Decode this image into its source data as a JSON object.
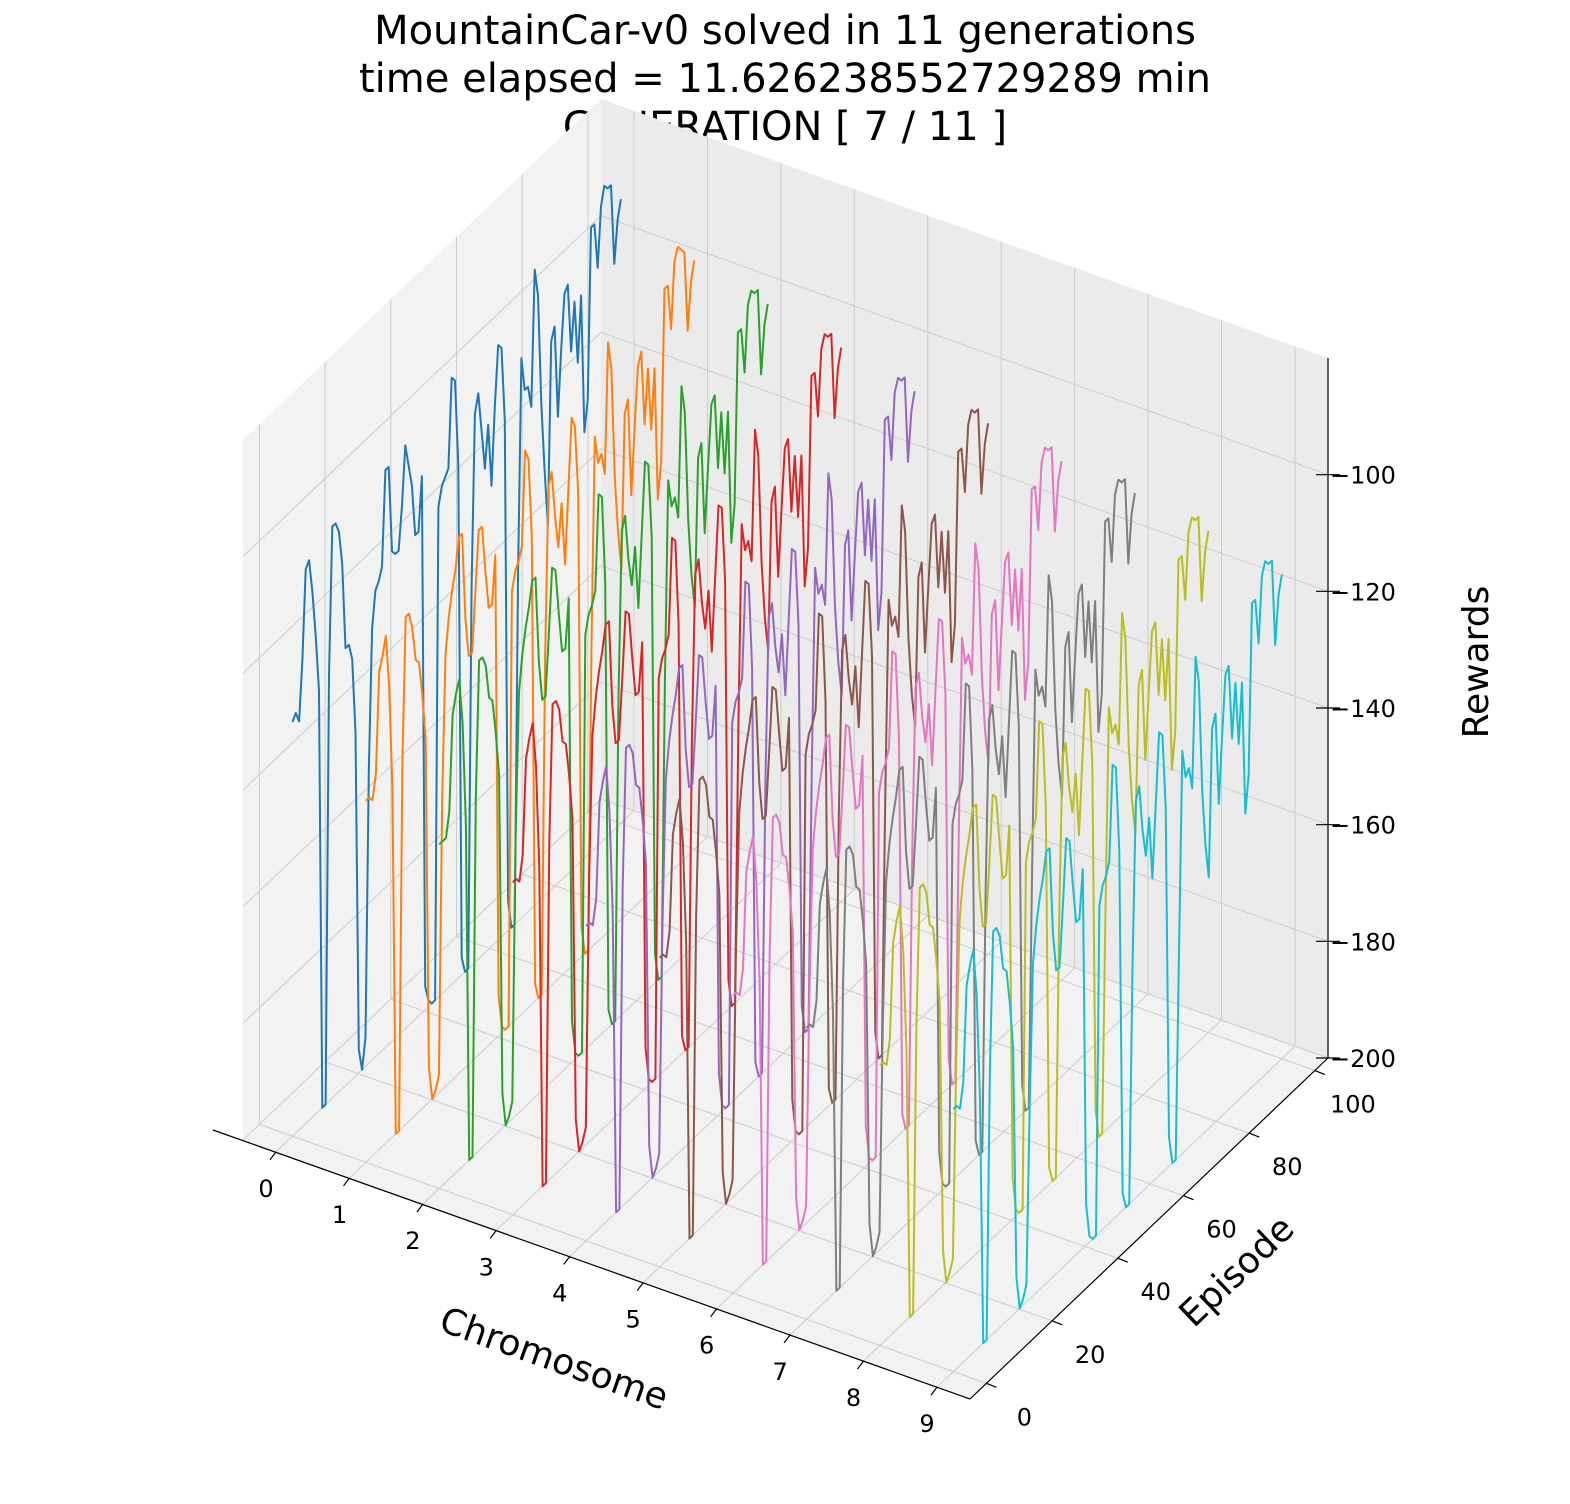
{
  "title": {
    "line1": "MountainCar-v0 solved in 11 generations",
    "line2": "time elapsed = 11.626238552729289 min",
    "line3": "GENERATION [ 7 / 11 ]"
  },
  "chart_data": {
    "type": "line",
    "projection": "3d",
    "title": "MountainCar-v0 solved in 11 generations\ntime elapsed = 11.626238552729289 min\nGENERATION [ 7 / 11 ]",
    "xlabel": "Chromosome",
    "ylabel": "Episode",
    "zlabel": "Rewards",
    "x_ticks": [
      "0",
      "1",
      "2",
      "3",
      "4",
      "5",
      "6",
      "7",
      "8",
      "9"
    ],
    "y_ticks": [
      "0",
      "20",
      "40",
      "60",
      "80",
      "100"
    ],
    "z_ticks": [
      "−200",
      "−180",
      "−160",
      "−140",
      "−120",
      "−100"
    ],
    "xlim": [
      -0.45,
      9.45
    ],
    "ylim": [
      -5,
      104
    ],
    "zlim": [
      -200,
      -80
    ],
    "grid": true,
    "series": [
      {
        "chromosome": 0,
        "color": "#1f77b4",
        "values": [
          -129,
          -128,
          -130,
          -120,
          -105,
          -104,
          -110,
          -118,
          -128,
          -200,
          -200,
          -127,
          -102,
          -102,
          -104,
          -110,
          -125,
          -125,
          -128,
          -141,
          -196,
          -200,
          -195,
          -150,
          -126,
          -120,
          -119,
          -117,
          -101,
          -101,
          -116,
          -117,
          -117,
          -110,
          -100,
          -104,
          -108,
          -117,
          -117,
          -108,
          -196,
          -199,
          -200,
          -200,
          -116,
          -113,
          -112,
          -111,
          -96,
          -97,
          -112,
          -197,
          -200,
          -200,
          -135,
          -106,
          -103,
          -110,
          -117,
          -110,
          -121,
          -108,
          -98,
          -99,
          -112,
          -195,
          -200,
          -200,
          -140,
          -104,
          -110,
          -110,
          -114,
          -91,
          -96,
          -115,
          -127,
          -137,
          -106,
          -104,
          -120,
          -109,
          -100,
          -99,
          -111,
          -103,
          -114,
          -103,
          -127,
          -122,
          -93,
          -93,
          -101,
          -91,
          -88,
          -89,
          -89,
          -103,
          -96,
          -93
        ]
      },
      {
        "chromosome": 1,
        "color": "#ff7f0e",
        "values": [
          -138,
          -138,
          -139,
          -135,
          -118,
          -116,
          -113,
          -122,
          -140,
          -200,
          -200,
          -137,
          -113,
          -113,
          -116,
          -122,
          -123,
          -129,
          -137,
          -194,
          -200,
          -199,
          -197,
          -150,
          -126,
          -120,
          -116,
          -113,
          -108,
          -108,
          -123,
          -130,
          -130,
          -120,
          -110,
          -110,
          -118,
          -125,
          -125,
          -117,
          -193,
          -199,
          -200,
          -200,
          -126,
          -123,
          -122,
          -120,
          -104,
          -106,
          -120,
          -197,
          -200,
          -200,
          -143,
          -114,
          -112,
          -120,
          -126,
          -119,
          -130,
          -118,
          -106,
          -108,
          -120,
          -195,
          -200,
          -200,
          -148,
          -113,
          -118,
          -117,
          -121,
          -99,
          -104,
          -123,
          -133,
          -140,
          -114,
          -112,
          -129,
          -118,
          -108,
          -106,
          -119,
          -110,
          -121,
          -111,
          -134,
          -128,
          -99,
          -99,
          -107,
          -96,
          -94,
          -95,
          -96,
          -110,
          -102,
          -99
        ]
      },
      {
        "chromosome": 2,
        "color": "#2ca02c",
        "values": [
          -141,
          -141,
          -141,
          -137,
          -121,
          -118,
          -116,
          -124,
          -142,
          -200,
          -200,
          -139,
          -116,
          -116,
          -118,
          -124,
          -125,
          -131,
          -139,
          -194,
          -200,
          -199,
          -197,
          -152,
          -128,
          -122,
          -118,
          -115,
          -111,
          -111,
          -126,
          -133,
          -133,
          -123,
          -112,
          -113,
          -121,
          -128,
          -128,
          -120,
          -193,
          -199,
          -200,
          -200,
          -129,
          -126,
          -125,
          -123,
          -107,
          -108,
          -123,
          -197,
          -200,
          -200,
          -145,
          -117,
          -115,
          -123,
          -128,
          -122,
          -133,
          -121,
          -109,
          -110,
          -123,
          -195,
          -200,
          -200,
          -150,
          -116,
          -121,
          -120,
          -124,
          -102,
          -107,
          -126,
          -136,
          -142,
          -117,
          -115,
          -131,
          -120,
          -110,
          -109,
          -122,
          -113,
          -124,
          -114,
          -137,
          -131,
          -102,
          -102,
          -110,
          -99,
          -97,
          -98,
          -98,
          -113,
          -105,
          -102
        ]
      },
      {
        "chromosome": 3,
        "color": "#d62728",
        "values": [
          -143,
          -143,
          -144,
          -140,
          -124,
          -121,
          -119,
          -127,
          -145,
          -200,
          -200,
          -142,
          -119,
          -119,
          -121,
          -127,
          -128,
          -134,
          -142,
          -194,
          -200,
          -199,
          -197,
          -155,
          -131,
          -125,
          -121,
          -118,
          -114,
          -114,
          -129,
          -136,
          -136,
          -126,
          -115,
          -116,
          -124,
          -131,
          -131,
          -123,
          -193,
          -199,
          -200,
          -200,
          -132,
          -129,
          -128,
          -126,
          -110,
          -111,
          -126,
          -197,
          -200,
          -200,
          -148,
          -120,
          -118,
          -126,
          -131,
          -125,
          -136,
          -124,
          -112,
          -113,
          -126,
          -195,
          -200,
          -200,
          -153,
          -119,
          -124,
          -123,
          -127,
          -105,
          -110,
          -129,
          -139,
          -145,
          -120,
          -118,
          -134,
          -123,
          -113,
          -112,
          -125,
          -116,
          -127,
          -117,
          -140,
          -134,
          -105,
          -105,
          -113,
          -102,
          -100,
          -101,
          -101,
          -116,
          -108,
          -105
        ]
      },
      {
        "chromosome": 4,
        "color": "#9467bd",
        "values": [
          -146,
          -146,
          -147,
          -143,
          -127,
          -124,
          -122,
          -130,
          -148,
          -200,
          -200,
          -145,
          -122,
          -122,
          -124,
          -130,
          -131,
          -137,
          -145,
          -194,
          -200,
          -199,
          -197,
          -158,
          -134,
          -128,
          -124,
          -121,
          -117,
          -117,
          -132,
          -139,
          -139,
          -129,
          -118,
          -119,
          -127,
          -134,
          -134,
          -126,
          -193,
          -199,
          -200,
          -200,
          -135,
          -132,
          -131,
          -129,
          -113,
          -114,
          -129,
          -197,
          -200,
          -200,
          -151,
          -123,
          -121,
          -129,
          -134,
          -128,
          -139,
          -127,
          -115,
          -116,
          -129,
          -195,
          -200,
          -200,
          -156,
          -122,
          -127,
          -126,
          -130,
          -108,
          -113,
          -132,
          -142,
          -148,
          -123,
          -121,
          -137,
          -126,
          -116,
          -115,
          -128,
          -119,
          -130,
          -120,
          -143,
          -137,
          -108,
          -108,
          -116,
          -105,
          -103,
          -104,
          -104,
          -119,
          -111,
          -108
        ]
      },
      {
        "chromosome": 5,
        "color": "#8c564b",
        "values": [
          -147,
          -147,
          -148,
          -144,
          -128,
          -125,
          -123,
          -131,
          -149,
          -200,
          -200,
          -146,
          -123,
          -123,
          -125,
          -131,
          -132,
          -138,
          -146,
          -194,
          -200,
          -199,
          -197,
          -159,
          -135,
          -129,
          -125,
          -122,
          -118,
          -118,
          -133,
          -140,
          -140,
          -130,
          -119,
          -120,
          -128,
          -135,
          -135,
          -127,
          -193,
          -199,
          -200,
          -200,
          -136,
          -133,
          -132,
          -130,
          -114,
          -115,
          -130,
          -197,
          -200,
          -200,
          -152,
          -124,
          -122,
          -130,
          -135,
          -129,
          -140,
          -128,
          -116,
          -117,
          -130,
          -195,
          -200,
          -200,
          -157,
          -123,
          -128,
          -127,
          -131,
          -109,
          -114,
          -133,
          -143,
          -149,
          -124,
          -122,
          -138,
          -127,
          -117,
          -116,
          -129,
          -120,
          -131,
          -121,
          -144,
          -138,
          -109,
          -109,
          -117,
          -106,
          -104,
          -105,
          -105,
          -120,
          -112,
          -109
        ]
      },
      {
        "chromosome": 6,
        "color": "#e377c2",
        "values": [
          -149,
          -149,
          -150,
          -146,
          -130,
          -127,
          -125,
          -133,
          -151,
          -200,
          -200,
          -148,
          -125,
          -125,
          -127,
          -133,
          -134,
          -140,
          -148,
          -194,
          -200,
          -199,
          -197,
          -161,
          -137,
          -131,
          -127,
          -124,
          -120,
          -120,
          -135,
          -142,
          -142,
          -132,
          -121,
          -122,
          -130,
          -137,
          -137,
          -129,
          -193,
          -199,
          -200,
          -200,
          -138,
          -135,
          -134,
          -132,
          -116,
          -117,
          -132,
          -197,
          -200,
          -200,
          -154,
          -126,
          -124,
          -132,
          -137,
          -131,
          -142,
          -130,
          -118,
          -119,
          -132,
          -195,
          -200,
          -200,
          -159,
          -125,
          -130,
          -129,
          -133,
          -111,
          -116,
          -135,
          -145,
          -151,
          -126,
          -124,
          -140,
          -129,
          -119,
          -118,
          -131,
          -122,
          -133,
          -123,
          -146,
          -140,
          -111,
          -111,
          -119,
          -108,
          -106,
          -107,
          -107,
          -122,
          -114,
          -111
        ]
      },
      {
        "chromosome": 7,
        "color": "#7f7f7f",
        "values": [
          -150,
          -150,
          -151,
          -147,
          -131,
          -128,
          -126,
          -134,
          -152,
          -200,
          -200,
          -149,
          -126,
          -126,
          -128,
          -134,
          -135,
          -141,
          -149,
          -194,
          -200,
          -199,
          -197,
          -162,
          -138,
          -132,
          -128,
          -125,
          -121,
          -121,
          -136,
          -143,
          -143,
          -133,
          -122,
          -123,
          -131,
          -138,
          -138,
          -130,
          -193,
          -199,
          -200,
          -200,
          -139,
          -136,
          -135,
          -133,
          -117,
          -118,
          -133,
          -197,
          -200,
          -200,
          -155,
          -127,
          -125,
          -133,
          -138,
          -132,
          -143,
          -131,
          -119,
          -120,
          -133,
          -195,
          -200,
          -200,
          -160,
          -126,
          -131,
          -130,
          -134,
          -112,
          -117,
          -136,
          -146,
          -152,
          -127,
          -125,
          -141,
          -130,
          -120,
          -119,
          -132,
          -123,
          -134,
          -124,
          -147,
          -141,
          -112,
          -112,
          -120,
          -109,
          -107,
          -108,
          -108,
          -123,
          -115,
          -112
        ]
      },
      {
        "chromosome": 8,
        "color": "#bcbd22",
        "values": [
          -152,
          -152,
          -153,
          -149,
          -133,
          -130,
          -128,
          -136,
          -154,
          -200,
          -200,
          -151,
          -128,
          -128,
          -130,
          -136,
          -137,
          -143,
          -151,
          -194,
          -200,
          -199,
          -197,
          -164,
          -140,
          -134,
          -130,
          -127,
          -123,
          -123,
          -138,
          -145,
          -145,
          -135,
          -124,
          -125,
          -133,
          -140,
          -140,
          -132,
          -193,
          -199,
          -200,
          -200,
          -141,
          -138,
          -137,
          -135,
          -119,
          -120,
          -135,
          -197,
          -200,
          -200,
          -157,
          -129,
          -127,
          -135,
          -140,
          -134,
          -145,
          -133,
          -121,
          -122,
          -135,
          -195,
          -200,
          -200,
          -162,
          -128,
          -133,
          -132,
          -136,
          -114,
          -119,
          -138,
          -148,
          -154,
          -129,
          -127,
          -143,
          -132,
          -122,
          -121,
          -134,
          -125,
          -136,
          -126,
          -149,
          -143,
          -114,
          -114,
          -122,
          -111,
          -109,
          -110,
          -110,
          -125,
          -117,
          -114
        ]
      },
      {
        "chromosome": 9,
        "color": "#17becf",
        "values": [
          -155,
          -155,
          -156,
          -152,
          -136,
          -133,
          -131,
          -139,
          -157,
          -200,
          -200,
          -154,
          -131,
          -131,
          -133,
          -139,
          -140,
          -146,
          -154,
          -194,
          -200,
          -199,
          -197,
          -167,
          -143,
          -137,
          -133,
          -130,
          -126,
          -126,
          -141,
          -148,
          -148,
          -138,
          -127,
          -128,
          -136,
          -143,
          -143,
          -135,
          -193,
          -199,
          -200,
          -200,
          -144,
          -141,
          -140,
          -138,
          -122,
          -123,
          -138,
          -197,
          -200,
          -200,
          -160,
          -132,
          -130,
          -138,
          -143,
          -137,
          -148,
          -136,
          -124,
          -125,
          -138,
          -195,
          -200,
          -200,
          -165,
          -131,
          -136,
          -135,
          -139,
          -117,
          -122,
          -141,
          -151,
          -157,
          -132,
          -130,
          -146,
          -135,
          -125,
          -124,
          -137,
          -128,
          -139,
          -129,
          -152,
          -146,
          -117,
          -117,
          -125,
          -114,
          -112,
          -113,
          -113,
          -128,
          -120,
          -117
        ]
      }
    ]
  }
}
